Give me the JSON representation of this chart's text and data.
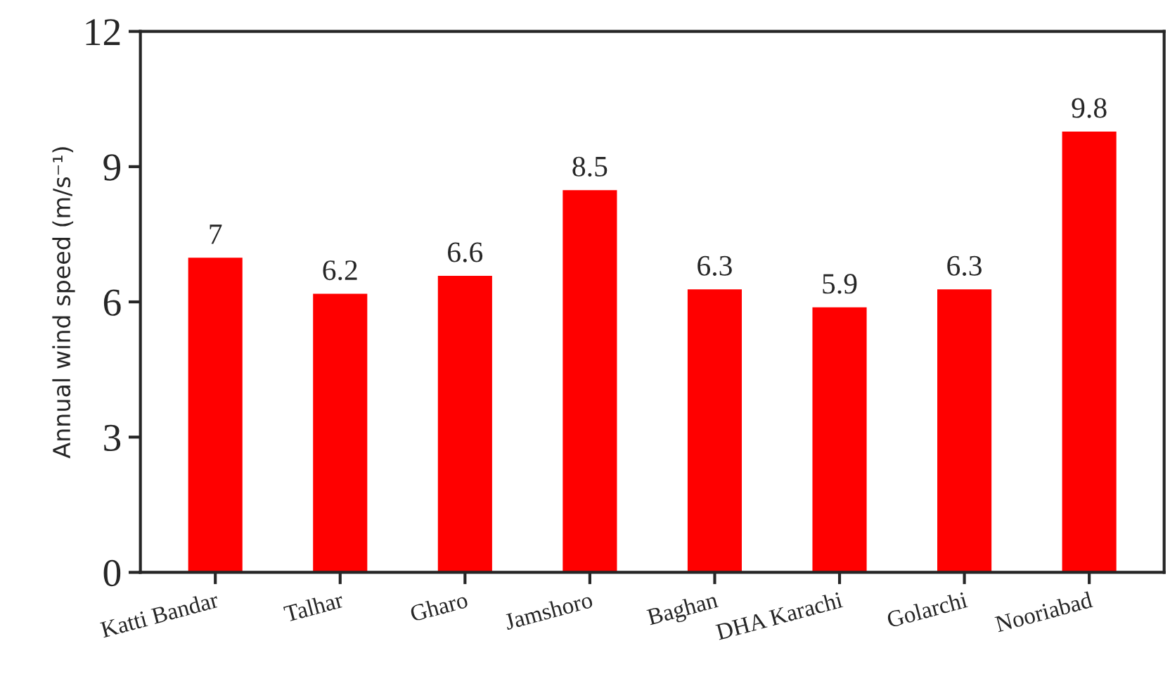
{
  "chart_data": {
    "type": "bar",
    "ylabel": "Annual wind speed (m/s⁻¹)",
    "categories": [
      "Katti Bandar",
      "Talhar",
      "Gharo",
      "Jamshoro",
      "Baghan",
      "DHA Karachi",
      "Golarchi",
      "Nooriabad"
    ],
    "values": [
      7,
      6.2,
      6.6,
      8.5,
      6.3,
      5.9,
      6.3,
      9.8
    ],
    "color": "#ff0000",
    "ylim": [
      0,
      12
    ],
    "yticks": [
      0,
      3,
      6,
      9,
      12
    ],
    "data_labels": true,
    "grid": false,
    "legend": false
  }
}
